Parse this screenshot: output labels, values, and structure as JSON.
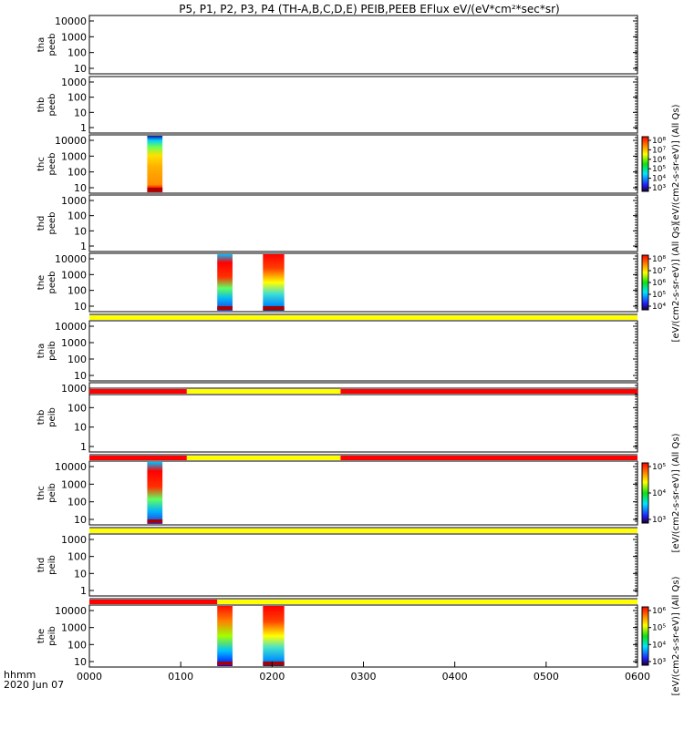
{
  "chart_data": {
    "type": "heatmap",
    "title": "P5, P1, P2, P3, P4 (TH-A,B,C,D,E) PEIB,PEEB EFlux eV/(eV*cm²*sec*sr)",
    "x_corner_label": [
      "hhmm",
      "2020 Jun 07"
    ],
    "x_ticks": [
      "0000",
      "0100",
      "0200",
      "0300",
      "0400",
      "0500",
      "0600"
    ],
    "x_range_hours": [
      0,
      6
    ],
    "panels": [
      {
        "probe": "tha",
        "product": "peeb",
        "y_ticks": [
          "10",
          "100",
          "1000",
          "10000"
        ],
        "data_blocks": []
      },
      {
        "probe": "thb",
        "product": "peeb",
        "y_ticks": [
          "1",
          "10",
          "100",
          "1000"
        ],
        "data_blocks": []
      },
      {
        "probe": "thc",
        "product": "peeb",
        "y_ticks": [
          "10",
          "100",
          "1000",
          "10000"
        ],
        "data_blocks": [
          {
            "start_hhmm": "0038",
            "end_hhmm": "0048"
          }
        ],
        "colorbar": {
          "ticks": [
            "10³",
            "10⁴",
            "10⁵",
            "10⁶",
            "10⁷",
            "10⁸"
          ],
          "label": "[eV/(cm2-s-sr-eV)] (All Qs)"
        }
      },
      {
        "probe": "thd",
        "product": "peeb",
        "y_ticks": [
          "1",
          "10",
          "100",
          "1000"
        ],
        "data_blocks": []
      },
      {
        "probe": "the",
        "product": "peeb",
        "y_ticks": [
          "10",
          "100",
          "1000",
          "10000"
        ],
        "data_blocks": [
          {
            "start_hhmm": "0124",
            "end_hhmm": "0134"
          },
          {
            "start_hhmm": "0154",
            "end_hhmm": "0208"
          }
        ],
        "colorbar": {
          "ticks": [
            "10⁴",
            "10⁵",
            "10⁶",
            "10⁷",
            "10⁸"
          ],
          "label": "[eV/(cm2-s-sr-eV)] (All Qs)"
        }
      },
      {
        "probe": "tha",
        "product": "peib",
        "y_ticks": [
          "10",
          "100",
          "1000",
          "10000"
        ],
        "data_blocks": []
      },
      {
        "probe": "thb",
        "product": "peib",
        "y_ticks": [
          "1",
          "10",
          "100",
          "1000"
        ],
        "data_blocks": []
      },
      {
        "probe": "thc",
        "product": "peib",
        "y_ticks": [
          "10",
          "100",
          "1000",
          "10000"
        ],
        "data_blocks": [
          {
            "start_hhmm": "0038",
            "end_hhmm": "0048"
          }
        ],
        "colorbar": {
          "ticks": [
            "10³",
            "10⁴",
            "10⁵"
          ],
          "label": "[eV/(cm2-s-sr-eV)] (All Qs)"
        }
      },
      {
        "probe": "thd",
        "product": "peib",
        "y_ticks": [
          "1",
          "10",
          "100",
          "1000"
        ],
        "data_blocks": []
      },
      {
        "probe": "the",
        "product": "peib",
        "y_ticks": [
          "10",
          "100",
          "1000",
          "10000"
        ],
        "data_blocks": [
          {
            "start_hhmm": "0124",
            "end_hhmm": "0134"
          },
          {
            "start_hhmm": "0154",
            "end_hhmm": "0208"
          }
        ],
        "colorbar": {
          "ticks": [
            "10³",
            "10⁴",
            "10⁵",
            "10⁶"
          ],
          "label": "[eV/(cm2-s-sr-eV)] (All Qs)"
        }
      }
    ],
    "status_bars": [
      {
        "after_panel": 4,
        "segments": [
          {
            "from_hhmm": "0000",
            "to_hhmm": "0600",
            "color": "#ffff00"
          }
        ]
      },
      {
        "after_panel": 5,
        "segments": [
          {
            "from_hhmm": "0000",
            "to_hhmm": "0104",
            "color": "#ff0000"
          },
          {
            "from_hhmm": "0104",
            "to_hhmm": "0245",
            "color": "#ffff00"
          },
          {
            "from_hhmm": "0245",
            "to_hhmm": "0600",
            "color": "#ff0000"
          }
        ]
      },
      {
        "after_panel": 6,
        "segments": [
          {
            "from_hhmm": "0000",
            "to_hhmm": "0104",
            "color": "#ff0000"
          },
          {
            "from_hhmm": "0104",
            "to_hhmm": "0245",
            "color": "#ffff00"
          },
          {
            "from_hhmm": "0245",
            "to_hhmm": "0600",
            "color": "#ff0000"
          }
        ]
      },
      {
        "after_panel": 7,
        "segments": [
          {
            "from_hhmm": "0000",
            "to_hhmm": "0600",
            "color": "#ffff00"
          }
        ]
      },
      {
        "after_panel": 8,
        "segments": [
          {
            "from_hhmm": "0000",
            "to_hhmm": "0124",
            "color": "#ff0000"
          },
          {
            "from_hhmm": "0124",
            "to_hhmm": "0600",
            "color": "#ffff00"
          }
        ]
      }
    ],
    "colors": {
      "red": "#ff0000",
      "yellow": "#ffff00"
    }
  }
}
